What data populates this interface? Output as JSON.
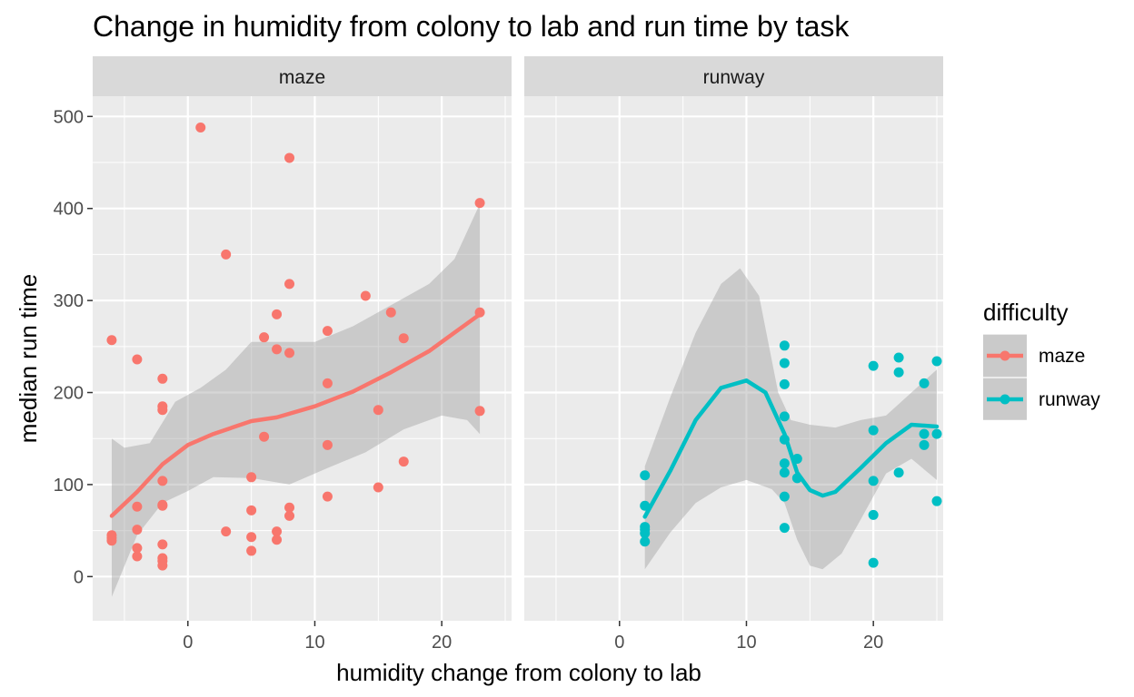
{
  "chart_data": {
    "type": "scatter",
    "title": "Change in humidity from colony to lab and run time by task",
    "xlabel": "humidity change from colony to lab",
    "ylabel": "median run time",
    "xlim": [
      -7.5,
      25.5
    ],
    "ylim": [
      -48,
      522
    ],
    "x_ticks": [
      0,
      10,
      20
    ],
    "y_ticks": [
      0,
      100,
      200,
      300,
      400,
      500
    ],
    "grid": true,
    "legend": {
      "title": "difficulty",
      "position": "right",
      "entries": [
        {
          "label": "maze",
          "color": "#F8766D"
        },
        {
          "label": "runway",
          "color": "#00BFC4"
        }
      ]
    },
    "panels": [
      {
        "strip": "maze",
        "color": "#F8766D",
        "points": [
          [
            -6,
            257
          ],
          [
            -6,
            45
          ],
          [
            -6,
            42
          ],
          [
            -6,
            39
          ],
          [
            -4,
            236
          ],
          [
            -4,
            76
          ],
          [
            -4,
            51
          ],
          [
            -4,
            31
          ],
          [
            -4,
            22
          ],
          [
            -2,
            215
          ],
          [
            -2,
            185
          ],
          [
            -2,
            181
          ],
          [
            -2,
            104
          ],
          [
            -2,
            78
          ],
          [
            -2,
            77
          ],
          [
            -2,
            35
          ],
          [
            -2,
            20
          ],
          [
            -2,
            17
          ],
          [
            -2,
            12
          ],
          [
            1,
            488
          ],
          [
            3,
            350
          ],
          [
            3,
            49
          ],
          [
            5,
            108
          ],
          [
            5,
            72
          ],
          [
            5,
            43
          ],
          [
            5,
            28
          ],
          [
            6,
            260
          ],
          [
            6,
            152
          ],
          [
            7,
            285
          ],
          [
            7,
            247
          ],
          [
            7,
            49
          ],
          [
            7,
            40
          ],
          [
            8,
            455
          ],
          [
            8,
            318
          ],
          [
            8,
            243
          ],
          [
            8,
            75
          ],
          [
            8,
            66
          ],
          [
            11,
            267
          ],
          [
            11,
            210
          ],
          [
            11,
            143
          ],
          [
            11,
            87
          ],
          [
            14,
            305
          ],
          [
            15,
            181
          ],
          [
            15,
            97
          ],
          [
            16,
            287
          ],
          [
            17,
            259
          ],
          [
            17,
            125
          ],
          [
            23,
            406
          ],
          [
            23,
            287
          ],
          [
            23,
            180
          ]
        ],
        "smooth": [
          [
            -6,
            66
          ],
          [
            -4,
            92
          ],
          [
            -2,
            122
          ],
          [
            0,
            143
          ],
          [
            2,
            155
          ],
          [
            5,
            169
          ],
          [
            7,
            173
          ],
          [
            10,
            185
          ],
          [
            13,
            201
          ],
          [
            16,
            222
          ],
          [
            19,
            245
          ],
          [
            21,
            265
          ],
          [
            23,
            285
          ]
        ],
        "band_upper": [
          [
            -6,
            150
          ],
          [
            -5,
            140
          ],
          [
            -3,
            145
          ],
          [
            -1,
            190
          ],
          [
            1,
            205
          ],
          [
            3,
            225
          ],
          [
            5,
            255
          ],
          [
            7,
            255
          ],
          [
            10,
            255
          ],
          [
            13,
            272
          ],
          [
            16,
            295
          ],
          [
            19,
            318
          ],
          [
            21,
            345
          ],
          [
            23,
            405
          ]
        ],
        "band_lower": [
          [
            -6,
            -22
          ],
          [
            -4,
            45
          ],
          [
            -2,
            80
          ],
          [
            0,
            93
          ],
          [
            2,
            108
          ],
          [
            5,
            107
          ],
          [
            8,
            100
          ],
          [
            11,
            118
          ],
          [
            14,
            135
          ],
          [
            17,
            160
          ],
          [
            20,
            175
          ],
          [
            22,
            170
          ],
          [
            23,
            155
          ]
        ]
      },
      {
        "strip": "runway",
        "color": "#00BFC4",
        "points": [
          [
            2,
            110
          ],
          [
            2,
            77
          ],
          [
            2,
            54
          ],
          [
            2,
            51
          ],
          [
            2,
            47
          ],
          [
            2,
            38
          ],
          [
            13,
            251
          ],
          [
            13,
            232
          ],
          [
            13,
            209
          ],
          [
            13,
            174
          ],
          [
            13,
            149
          ],
          [
            13,
            123
          ],
          [
            13,
            113
          ],
          [
            13,
            87
          ],
          [
            13,
            53
          ],
          [
            14,
            128
          ],
          [
            14,
            107
          ],
          [
            20,
            229
          ],
          [
            20,
            159
          ],
          [
            20,
            104
          ],
          [
            20,
            67
          ],
          [
            20,
            15
          ],
          [
            22,
            238
          ],
          [
            22,
            222
          ],
          [
            22,
            113
          ],
          [
            24,
            210
          ],
          [
            24,
            155
          ],
          [
            24,
            143
          ],
          [
            25,
            234
          ],
          [
            25,
            155
          ],
          [
            25,
            82
          ]
        ],
        "smooth": [
          [
            2,
            65
          ],
          [
            4,
            115
          ],
          [
            6,
            170
          ],
          [
            8,
            205
          ],
          [
            10,
            213
          ],
          [
            11.5,
            200
          ],
          [
            13,
            155
          ],
          [
            14,
            113
          ],
          [
            15,
            94
          ],
          [
            16,
            88
          ],
          [
            17,
            92
          ],
          [
            19,
            118
          ],
          [
            21,
            145
          ],
          [
            23,
            165
          ],
          [
            25,
            163
          ]
        ],
        "band_upper": [
          [
            2,
            120
          ],
          [
            4,
            195
          ],
          [
            6,
            265
          ],
          [
            8,
            318
          ],
          [
            9.5,
            335
          ],
          [
            11,
            305
          ],
          [
            12.5,
            200
          ],
          [
            13.5,
            170
          ],
          [
            15,
            165
          ],
          [
            17,
            162
          ],
          [
            19,
            170
          ],
          [
            21,
            175
          ],
          [
            23,
            200
          ],
          [
            25,
            225
          ]
        ],
        "band_lower": [
          [
            2,
            8
          ],
          [
            4,
            48
          ],
          [
            6,
            80
          ],
          [
            8,
            97
          ],
          [
            10,
            105
          ],
          [
            12,
            95
          ],
          [
            13,
            80
          ],
          [
            14,
            40
          ],
          [
            15,
            12
          ],
          [
            16,
            8
          ],
          [
            17.5,
            25
          ],
          [
            19,
            62
          ],
          [
            21,
            112
          ],
          [
            23,
            128
          ],
          [
            25,
            105
          ]
        ]
      }
    ]
  }
}
